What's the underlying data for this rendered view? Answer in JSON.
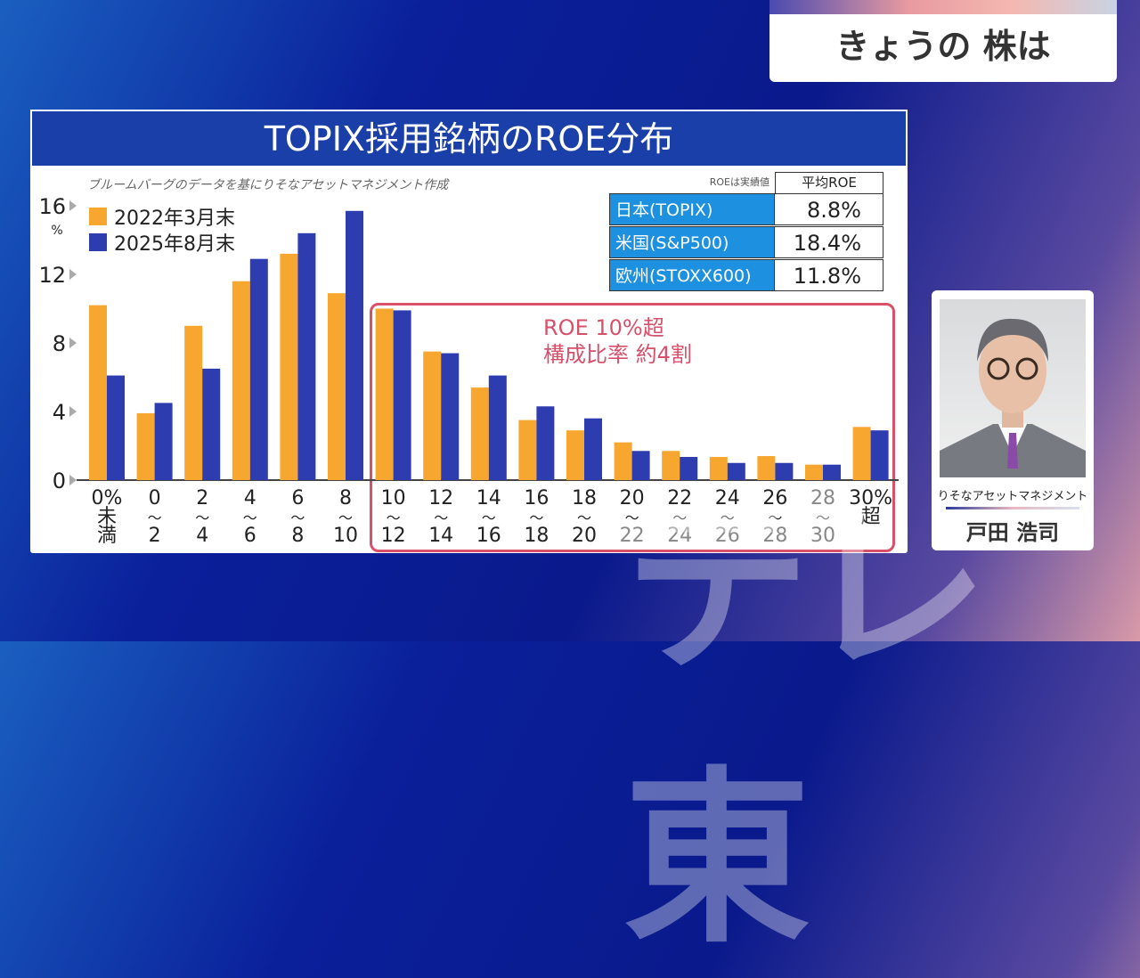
{
  "header": {
    "program_title": "きょうの 株は"
  },
  "watermark": "テレ東",
  "colors": {
    "series_2022": "#f7a730",
    "series_2025": "#2d3db0",
    "highlight": "#d8506a",
    "table_blue": "#1e90e0"
  },
  "chart_data": {
    "type": "bar",
    "title": "TOPIX採用銘柄のROE分布",
    "source": "ブルームバーグのデータを基にりそなアセットマネジメント作成",
    "ylabel": "%",
    "ylim": [
      0,
      16
    ],
    "yticks": [
      "0",
      "4",
      "8",
      "12",
      "16"
    ],
    "categories": [
      [
        "0%",
        "未",
        "満"
      ],
      [
        "0",
        "〜",
        "2"
      ],
      [
        "2",
        "〜",
        "4"
      ],
      [
        "4",
        "〜",
        "6"
      ],
      [
        "6",
        "〜",
        "8"
      ],
      [
        "8",
        "〜",
        "10"
      ],
      [
        "10",
        "〜",
        "12"
      ],
      [
        "12",
        "〜",
        "14"
      ],
      [
        "14",
        "〜",
        "16"
      ],
      [
        "16",
        "〜",
        "18"
      ],
      [
        "18",
        "〜",
        "20"
      ],
      [
        "20",
        "〜",
        "22"
      ],
      [
        "22",
        "〜",
        "24"
      ],
      [
        "24",
        "〜",
        "26"
      ],
      [
        "26",
        "〜",
        "28"
      ],
      [
        "28",
        "〜",
        "30"
      ],
      [
        "30%",
        "超",
        ""
      ]
    ],
    "series": [
      {
        "name": "2022年3月末",
        "values": [
          10.2,
          3.9,
          9.0,
          11.6,
          13.2,
          10.9,
          10.0,
          7.5,
          5.4,
          3.5,
          2.9,
          2.2,
          1.7,
          1.35,
          1.4,
          0.9,
          3.1
        ]
      },
      {
        "name": "2025年8月末",
        "values": [
          6.1,
          4.5,
          6.5,
          12.9,
          14.4,
          15.7,
          9.9,
          7.4,
          6.1,
          4.3,
          3.6,
          1.7,
          1.35,
          1.0,
          1.0,
          0.9,
          2.9
        ]
      }
    ],
    "legend": "top-left",
    "annotation": [
      "ROE 10%超",
      "構成比率 約4割"
    ]
  },
  "table": {
    "note": "ROEは実績値",
    "header": "平均ROE",
    "rows": [
      {
        "label": "日本(TOPIX)",
        "value": "8.8%"
      },
      {
        "label": "米国(S&P500)",
        "value": "18.4%"
      },
      {
        "label": "欧州(STOXX600)",
        "value": "11.8%"
      }
    ]
  },
  "guest": {
    "company": "りそなアセットマネジメント",
    "name": "戸田 浩司"
  }
}
